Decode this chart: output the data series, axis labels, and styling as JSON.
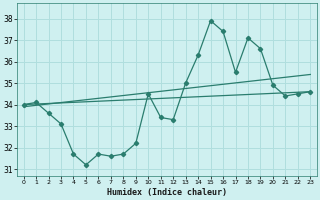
{
  "xlabel": "Humidex (Indice chaleur)",
  "bg_color": "#cff0f0",
  "grid_color": "#b0dede",
  "line_color": "#2a7d6e",
  "xlim": [
    -0.5,
    23.5
  ],
  "ylim": [
    30.7,
    38.7
  ],
  "yticks": [
    31,
    32,
    33,
    34,
    35,
    36,
    37,
    38
  ],
  "xticks": [
    0,
    1,
    2,
    3,
    4,
    5,
    6,
    7,
    8,
    9,
    10,
    11,
    12,
    13,
    14,
    15,
    16,
    17,
    18,
    19,
    20,
    21,
    22,
    23
  ],
  "series1_x": [
    0,
    1,
    2,
    3,
    4,
    5,
    6,
    7,
    8,
    9,
    10,
    11,
    12,
    13,
    14,
    15,
    16,
    17,
    18,
    19,
    20,
    21,
    22,
    23
  ],
  "series1_y": [
    34.0,
    34.1,
    33.6,
    33.1,
    31.7,
    31.2,
    31.7,
    31.6,
    31.7,
    32.2,
    34.5,
    33.4,
    33.3,
    35.0,
    36.3,
    37.9,
    37.4,
    35.5,
    37.1,
    36.6,
    34.9,
    34.4,
    34.5,
    34.6
  ],
  "series2_x": [
    0,
    23
  ],
  "series2_y": [
    33.9,
    35.4
  ],
  "series3_x": [
    0,
    23
  ],
  "series3_y": [
    34.0,
    34.6
  ]
}
